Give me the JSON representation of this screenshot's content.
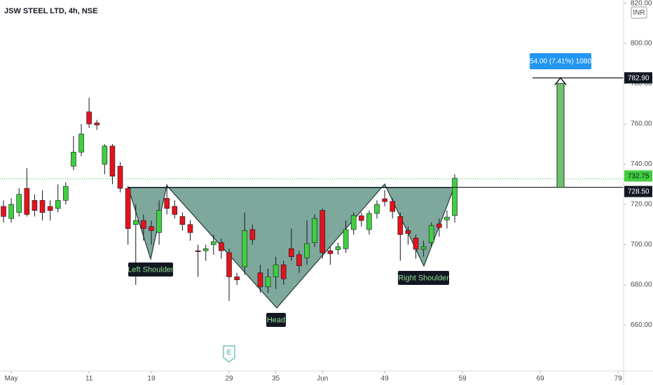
{
  "chart_data": {
    "type": "candlestick",
    "title": "JSW STEEL LTD, 4h, NSE",
    "currency": "INR",
    "earnings_marker": "E",
    "up_color": "#3fcf3f",
    "down_color": "#e3131b",
    "x": [
      0,
      1,
      2,
      3,
      4,
      5,
      6,
      7,
      8,
      9,
      10,
      11,
      12,
      13,
      14,
      15,
      16,
      17,
      18,
      19,
      20,
      21,
      22,
      23,
      24,
      25,
      26,
      27,
      28,
      29,
      30,
      31,
      32,
      33,
      34,
      35,
      36,
      37,
      38,
      39,
      40,
      41,
      42,
      43,
      44,
      45,
      46,
      47,
      48,
      49,
      50,
      51,
      52,
      53,
      54,
      55,
      56,
      57,
      58
    ],
    "open": [
      719,
      713,
      716,
      728,
      722,
      722,
      719,
      718,
      722,
      739,
      746,
      766,
      760.5,
      740,
      749,
      739,
      728,
      710,
      712,
      709,
      706,
      723,
      719,
      714,
      710,
      697,
      697,
      700,
      701,
      696,
      684,
      689,
      707.5,
      686,
      679,
      684,
      690,
      698,
      695,
      693.5,
      701,
      717,
      697,
      697.5,
      698,
      707.5,
      714.4,
      707.5,
      715.5,
      722.8,
      721.5,
      714,
      707,
      703.3,
      697.7,
      701,
      710.3,
      712.3,
      714.5
    ],
    "high": [
      722,
      723,
      728,
      738,
      725,
      727,
      722,
      730,
      731,
      754,
      760,
      773,
      762,
      750,
      750,
      741,
      729,
      720,
      715,
      712,
      722,
      730,
      722,
      716,
      712,
      700,
      700,
      705,
      703,
      698,
      686,
      716,
      710,
      690,
      688,
      694,
      692,
      708,
      697,
      712,
      715,
      718,
      699,
      701,
      712,
      716,
      716,
      717,
      722,
      727,
      723,
      716,
      709,
      705,
      702,
      711,
      713,
      717,
      735
    ],
    "low": [
      711,
      711,
      714,
      714,
      714,
      712,
      712,
      716,
      720,
      737,
      744,
      758,
      757,
      735,
      730,
      726,
      700,
      680,
      702,
      700,
      700,
      715,
      713,
      707,
      702,
      684,
      692,
      695,
      693,
      672,
      680,
      685,
      700,
      676,
      676,
      678,
      680,
      692,
      686,
      690,
      699,
      693,
      690,
      695,
      696,
      705,
      709,
      705,
      713,
      719,
      713,
      692,
      700,
      693,
      694,
      699,
      704,
      708,
      711
    ],
    "close": [
      714,
      720,
      725,
      715,
      717,
      716,
      717,
      722,
      729,
      746,
      755,
      760,
      759.5,
      749,
      734,
      728,
      708,
      712,
      708,
      707,
      717,
      718,
      715,
      710,
      706,
      696.5,
      698,
      701.5,
      697,
      684,
      682.5,
      707,
      702.5,
      679,
      684,
      690,
      683,
      694,
      689.5,
      700.5,
      713,
      696,
      695.5,
      699,
      707.5,
      714.5,
      712,
      715.5,
      720,
      721.4,
      716.5,
      705,
      705.5,
      697.7,
      699,
      709.5,
      708.5,
      713.7,
      733
    ],
    "xlim": [
      -0.45,
      79.7
    ],
    "xticks": [
      {
        "value": 1,
        "label": "May"
      },
      11,
      19,
      29,
      35,
      {
        "value": 41,
        "label": "Jun"
      },
      49,
      59,
      69,
      79
    ],
    "xtick_labels_override": null,
    "ylim": [
      637.2,
      821.6
    ],
    "yticks": [
      {
        "value": 660,
        "label": "660.00"
      },
      {
        "value": 680,
        "label": "680.00"
      },
      {
        "value": 700,
        "label": "700.00"
      },
      {
        "value": 720,
        "label": "720.00"
      },
      {
        "value": 740,
        "label": "740.00"
      },
      {
        "value": 760,
        "label": "760.00"
      },
      {
        "value": 780,
        "label": "780.00"
      },
      {
        "value": 800,
        "label": "800.00"
      },
      {
        "value": 820,
        "label": "820.00"
      }
    ],
    "last_price": {
      "value": 732.75,
      "label": "732.75"
    },
    "neckline": {
      "value": 728.5,
      "label": "728.50"
    },
    "target": {
      "value": 782.9,
      "label": "782.90"
    },
    "measure_label": "54.00 (7.41%) 1080",
    "annotations": [
      "Left Shoulder",
      "Head",
      "Right Shoulder"
    ]
  }
}
